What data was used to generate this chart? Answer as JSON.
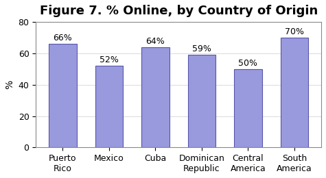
{
  "title": "Figure 7. % Online, by Country of Origin",
  "categories": [
    "Puerto\nRico",
    "Mexico",
    "Cuba",
    "Dominican\nRepublic",
    "Central\nAmerica",
    "South\nAmerica"
  ],
  "values": [
    66,
    52,
    64,
    59,
    50,
    70
  ],
  "bar_color": "#9999dd",
  "bar_edgecolor": "#5555aa",
  "ylabel": "%",
  "ylim": [
    0,
    80
  ],
  "yticks": [
    0,
    20,
    40,
    60,
    80
  ],
  "label_format": "{}%",
  "background_color": "#ffffff",
  "title_fontsize": 13,
  "axis_fontsize": 10,
  "label_fontsize": 9,
  "tick_fontsize": 9
}
